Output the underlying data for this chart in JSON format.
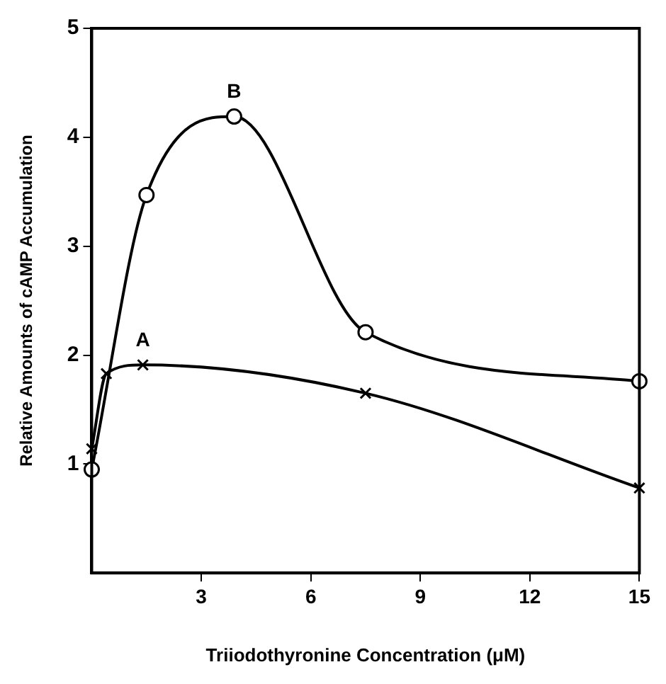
{
  "chart_data": {
    "type": "line",
    "xlabel": "Triiodothyronine Concentration (μM)",
    "ylabel": "Relative Amounts of cAMP Accumulation",
    "series": [
      {
        "name": "B",
        "color": "#000000",
        "marker": "circle",
        "x": [
          0,
          1.5,
          3.9,
          7.5,
          15
        ],
        "values": [
          0.95,
          3.47,
          4.19,
          2.21,
          1.76
        ]
      },
      {
        "name": "A",
        "color": "#000000",
        "marker": "cross",
        "x": [
          0,
          0.4,
          1.4,
          7.5,
          15
        ],
        "values": [
          1.14,
          1.83,
          1.91,
          1.65,
          0.78
        ]
      }
    ],
    "xlim": [
      0,
      15
    ],
    "xticks": [
      3,
      6,
      9,
      12,
      15
    ],
    "ylim": [
      0,
      5
    ],
    "yticks": [
      1,
      2,
      3,
      4,
      5
    ],
    "grid": false,
    "legend": false
  }
}
